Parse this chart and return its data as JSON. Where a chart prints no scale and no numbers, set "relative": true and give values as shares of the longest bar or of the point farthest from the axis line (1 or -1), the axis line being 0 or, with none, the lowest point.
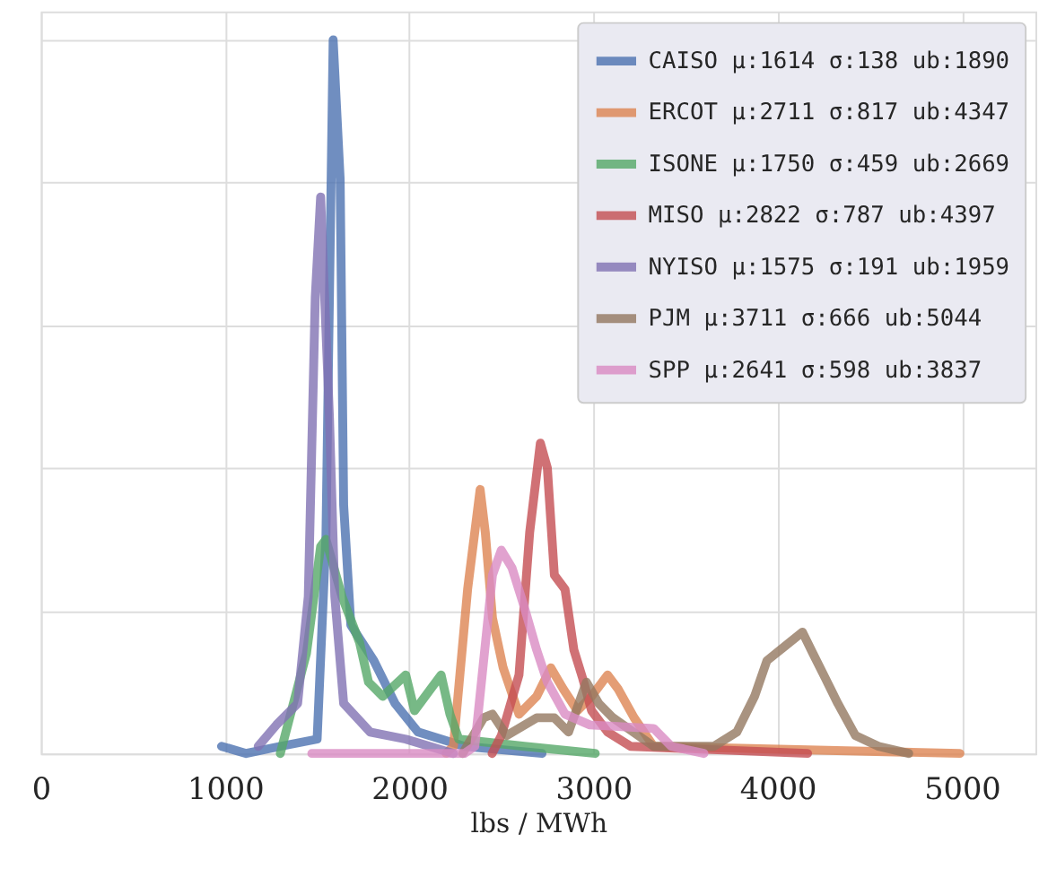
{
  "chart_data": {
    "type": "line",
    "xlabel": "lbs / MWh",
    "relative": true,
    "xlim": [
      0,
      5400
    ],
    "xticks": [
      0,
      1000,
      2000,
      3000,
      4000,
      5000
    ],
    "tick_labels": "x",
    "grid": true,
    "legend": "top right",
    "line_style": "solid",
    "marker": "none",
    "series": [
      {
        "name": "CAISO μ:1614 σ:138 ub:1890",
        "color": "#4c72b0",
        "x": [
          981,
          1115,
          1300,
          1500,
          1548,
          1587,
          1625,
          1644,
          1683,
          1808,
          1923,
          2048,
          2300,
          2721
        ],
        "values": [
          0.01,
          0,
          0.01,
          0.02,
          0.305,
          1.0,
          0.805,
          0.348,
          0.18,
          0.13,
          0.07,
          0.03,
          0.01,
          0
        ]
      },
      {
        "name": "ERCOT μ:2711 σ:817 ub:4347",
        "color": "#dd8452",
        "x": [
          2200,
          2240,
          2317,
          2385,
          2413,
          2452,
          2510,
          2596,
          2692,
          2769,
          2837,
          2913,
          2990,
          3077,
          3135,
          3221,
          3327,
          4990
        ],
        "values": [
          0,
          0.01,
          0.23,
          0.37,
          0.31,
          0.19,
          0.12,
          0.055,
          0.08,
          0.12,
          0.09,
          0.06,
          0.08,
          0.11,
          0.09,
          0.05,
          0.01,
          0
        ]
      },
      {
        "name": "ISONE μ:1750 σ:459 ub:2669",
        "color": "#55a868",
        "x": [
          1300,
          1442,
          1519,
          1548,
          1635,
          1731,
          1779,
          1856,
          1981,
          2029,
          2173,
          2221,
          2269,
          2625,
          3010
        ],
        "values": [
          0,
          0.14,
          0.29,
          0.3,
          0.22,
          0.155,
          0.1,
          0.08,
          0.11,
          0.06,
          0.11,
          0.055,
          0.02,
          0.01,
          0
        ]
      },
      {
        "name": "MISO μ:2822 σ:787 ub:4397",
        "color": "#c44e52",
        "x": [
          2450,
          2500,
          2596,
          2654,
          2712,
          2750,
          2788,
          2846,
          2894,
          2942,
          2990,
          3077,
          3202,
          4163
        ],
        "values": [
          0,
          0.025,
          0.11,
          0.31,
          0.435,
          0.4,
          0.25,
          0.23,
          0.145,
          0.105,
          0.06,
          0.03,
          0.01,
          0
        ]
      },
      {
        "name": "NYISO μ:1575 σ:191 ub:1959",
        "color": "#8172b3",
        "x": [
          1180,
          1279,
          1394,
          1452,
          1490,
          1519,
          1567,
          1596,
          1644,
          1788,
          1981,
          2240
        ],
        "values": [
          0.01,
          0.04,
          0.07,
          0.22,
          0.64,
          0.78,
          0.47,
          0.22,
          0.07,
          0.03,
          0.02,
          0
        ]
      },
      {
        "name": "PJM   μ:3711 σ:666 ub:5044",
        "color": "#937860",
        "x": [
          2290,
          2404,
          2452,
          2529,
          2692,
          2788,
          2865,
          2962,
          3029,
          3106,
          3327,
          3654,
          3779,
          3875,
          3942,
          4038,
          4135,
          4192,
          4260,
          4327,
          4423,
          4548,
          4712
        ],
        "values": [
          0,
          0.05,
          0.055,
          0.025,
          0.05,
          0.05,
          0.03,
          0.1,
          0.07,
          0.05,
          0.01,
          0.01,
          0.03,
          0.08,
          0.13,
          0.15,
          0.17,
          0.14,
          0.105,
          0.07,
          0.025,
          0.01,
          0
        ]
      },
      {
        "name": "SPP   μ:2641 σ:598 ub:3837",
        "color": "#da8bc3",
        "x": [
          1471,
          2300,
          2356,
          2452,
          2500,
          2558,
          2625,
          2692,
          2750,
          2846,
          2981,
          3327,
          3423,
          3600
        ],
        "values": [
          0,
          0,
          0.01,
          0.25,
          0.285,
          0.26,
          0.205,
          0.145,
          0.1,
          0.055,
          0.04,
          0.035,
          0.01,
          0
        ]
      }
    ]
  }
}
